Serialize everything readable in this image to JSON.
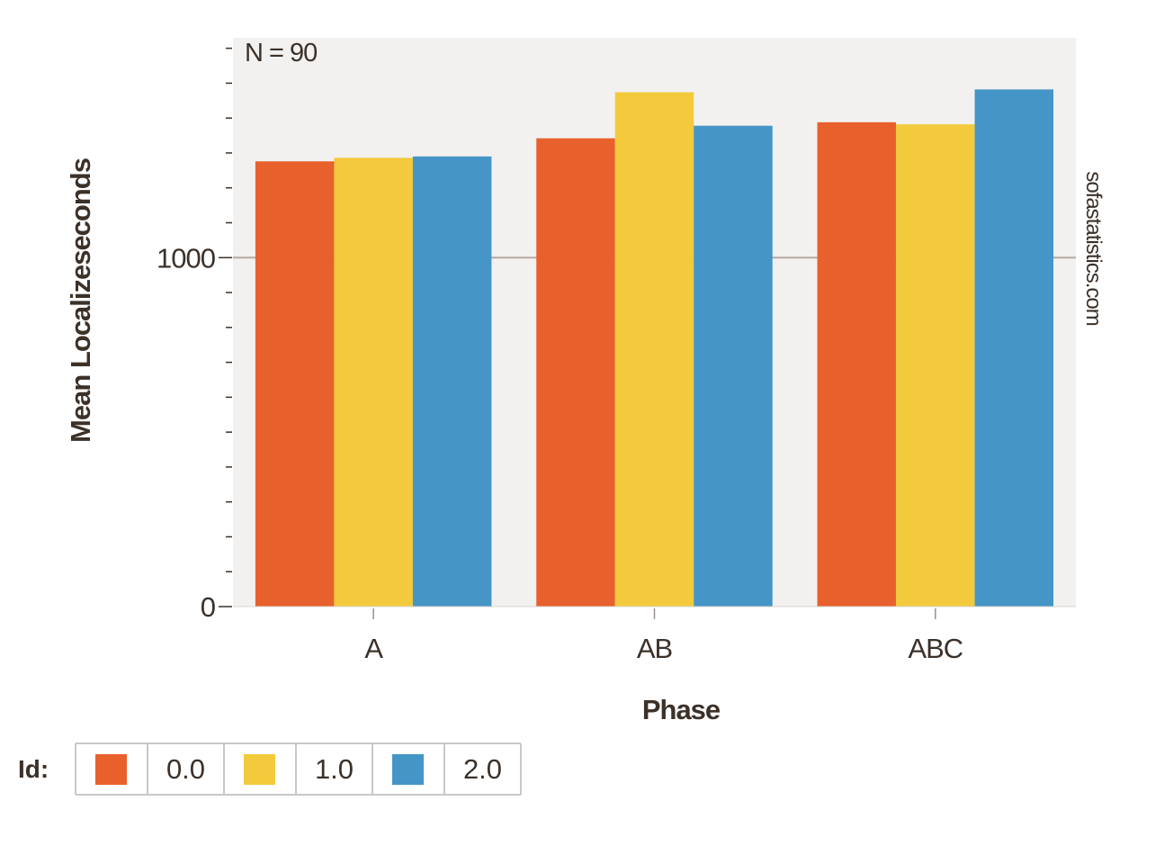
{
  "chart_data": {
    "type": "bar",
    "categories": [
      "A",
      "AB",
      "ABC"
    ],
    "series": [
      {
        "name": "0.0",
        "values": [
          1276,
          1342,
          1388
        ],
        "color": "#e8602c"
      },
      {
        "name": "1.0",
        "values": [
          1286,
          1474,
          1382
        ],
        "color": "#f3ca3b"
      },
      {
        "name": "2.0",
        "values": [
          1290,
          1378,
          1482
        ],
        "color": "#4595c7"
      }
    ],
    "xlabel": "Phase",
    "ylabel": "Mean Localizeseconds",
    "ylim": [
      0,
      1630
    ],
    "yticks": [
      {
        "value": 0,
        "label": "0"
      },
      {
        "value": 1000,
        "label": "1000"
      }
    ],
    "yminor_step": 100,
    "annotation": "N = 90",
    "watermark": "sofastatistics.com",
    "legend": {
      "title": "Id:",
      "position": "bottom-left"
    },
    "grid": "horizontal line at major ticks only",
    "plot_background": "#f2f1f0",
    "gridline_color": "#b7a8a3"
  }
}
